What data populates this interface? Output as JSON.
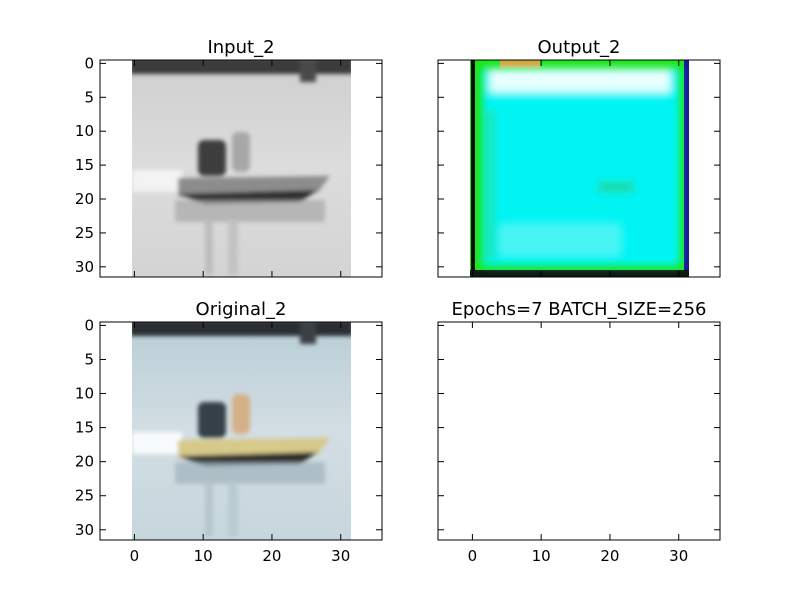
{
  "chart_data": [
    {
      "type": "image",
      "title": "Input_2",
      "image": "grayscale-speedboat",
      "xlim": [
        -5,
        36
      ],
      "ylim": [
        31.5,
        -0.5
      ],
      "yticks": [
        0,
        5,
        10,
        15,
        20,
        25,
        30
      ],
      "xticks": [],
      "show_ytick_labels": true,
      "show_xtick_labels": false
    },
    {
      "type": "image",
      "title": "Output_2",
      "image": "cyan-noise-reconstruction",
      "xlim": [
        -5,
        36
      ],
      "ylim": [
        31.5,
        -0.5
      ],
      "yticks": [
        0,
        5,
        10,
        15,
        20,
        25,
        30
      ],
      "xticks": [],
      "show_ytick_labels": false,
      "show_xtick_labels": false
    },
    {
      "type": "image",
      "title": "Original_2",
      "image": "color-speedboat",
      "xlim": [
        -5,
        36
      ],
      "ylim": [
        31.5,
        -0.5
      ],
      "yticks": [
        0,
        5,
        10,
        15,
        20,
        25,
        30
      ],
      "xticks": [
        0,
        10,
        20,
        30
      ],
      "show_ytick_labels": true,
      "show_xtick_labels": true
    },
    {
      "type": "empty",
      "title": "Epochs=7 BATCH_SIZE=256",
      "xlim": [
        -5,
        36
      ],
      "ylim": [
        31.5,
        -0.5
      ],
      "yticks": [
        0,
        5,
        10,
        15,
        20,
        25,
        30
      ],
      "xticks": [
        0,
        10,
        20,
        30
      ],
      "show_ytick_labels": false,
      "show_xtick_labels": true
    }
  ],
  "colors": {
    "axis": "#000000",
    "background": "#ffffff"
  }
}
